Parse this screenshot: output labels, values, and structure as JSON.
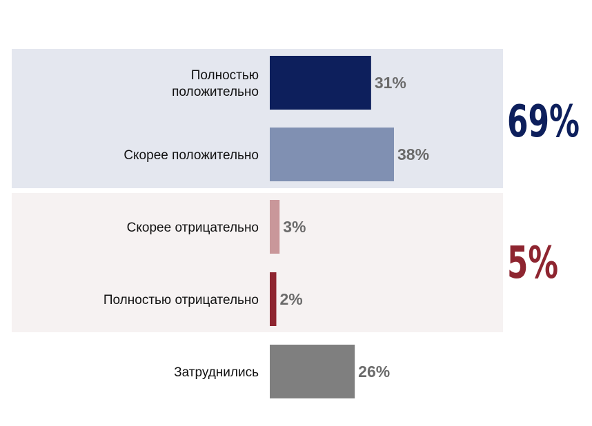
{
  "chart_data": {
    "type": "bar",
    "orientation": "horizontal",
    "categories": [
      [
        "Полностью",
        "положительно"
      ],
      [
        "Скорее положительно"
      ],
      [
        "Скорее отрицательно"
      ],
      [
        "Полностью отрицательно"
      ],
      [
        "Затруднились"
      ]
    ],
    "values": [
      31,
      38,
      3,
      2,
      26
    ],
    "value_labels": [
      "31%",
      "38%",
      "3%",
      "2%",
      "26%"
    ],
    "bar_colors": [
      "#0d1f5c",
      "#8090b2",
      "#c9979a",
      "#8e2530",
      "#7f7f7f"
    ],
    "xlim": [
      0,
      40
    ],
    "grid": false,
    "groups": [
      {
        "total_label": "69%",
        "color": "#0d1f5c",
        "background": "#e4e7ef",
        "members": [
          0,
          1
        ]
      },
      {
        "total_label": "5%",
        "color": "#8e2530",
        "background": "#f6f2f2",
        "members": [
          2,
          3
        ]
      }
    ]
  }
}
